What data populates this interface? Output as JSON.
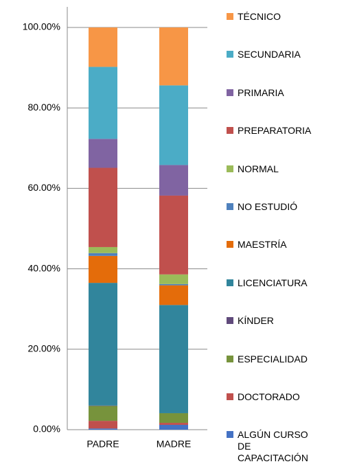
{
  "chart_data": {
    "type": "stacked_bar",
    "categories": [
      "PADRE",
      "MADRE"
    ],
    "series": [
      {
        "name": "ALGÚN CURSO DE CAPACITACIÓN",
        "color": "#4472c4",
        "values": [
          0.3,
          1.2
        ]
      },
      {
        "name": "DOCTORADO",
        "color": "#c0504d",
        "values": [
          1.9,
          0.5
        ]
      },
      {
        "name": "ESPECIALIDAD",
        "color": "#77933c",
        "values": [
          3.7,
          2.4
        ]
      },
      {
        "name": "KÍNDER",
        "color": "#604a7b",
        "values": [
          0.1,
          0
        ]
      },
      {
        "name": "LICENCIATURA",
        "color": "#31859c",
        "values": [
          30.5,
          26.9
        ]
      },
      {
        "name": "MAESTRÍA",
        "color": "#e46c0a",
        "values": [
          6.7,
          4.9
        ]
      },
      {
        "name": "NO ESTUDIÓ",
        "color": "#4f81bd",
        "values": [
          0.7,
          0.3
        ]
      },
      {
        "name": "NORMAL",
        "color": "#9bbb59",
        "values": [
          1.5,
          2.4
        ]
      },
      {
        "name": "PREPARATORIA",
        "color": "#c0504d",
        "values": [
          19.7,
          19.6
        ]
      },
      {
        "name": "PRIMARIA",
        "color": "#8064a2",
        "values": [
          7.2,
          7.6
        ]
      },
      {
        "name": "SECUNDARIA",
        "color": "#4bacc6",
        "values": [
          17.9,
          19.8
        ]
      },
      {
        "name": "TÉCNICO",
        "color": "#f79646",
        "values": [
          9.8,
          14.4
        ]
      }
    ],
    "ylim": [
      0,
      100
    ],
    "yticks": [
      {
        "value": 0,
        "label": "0.00%"
      },
      {
        "value": 20,
        "label": "20.00%"
      },
      {
        "value": 40,
        "label": "40.00%"
      },
      {
        "value": 60,
        "label": "60.00%"
      },
      {
        "value": 80,
        "label": "80.00%"
      },
      {
        "value": 100,
        "label": "100.00%"
      }
    ],
    "grid": true,
    "legend": "right"
  }
}
